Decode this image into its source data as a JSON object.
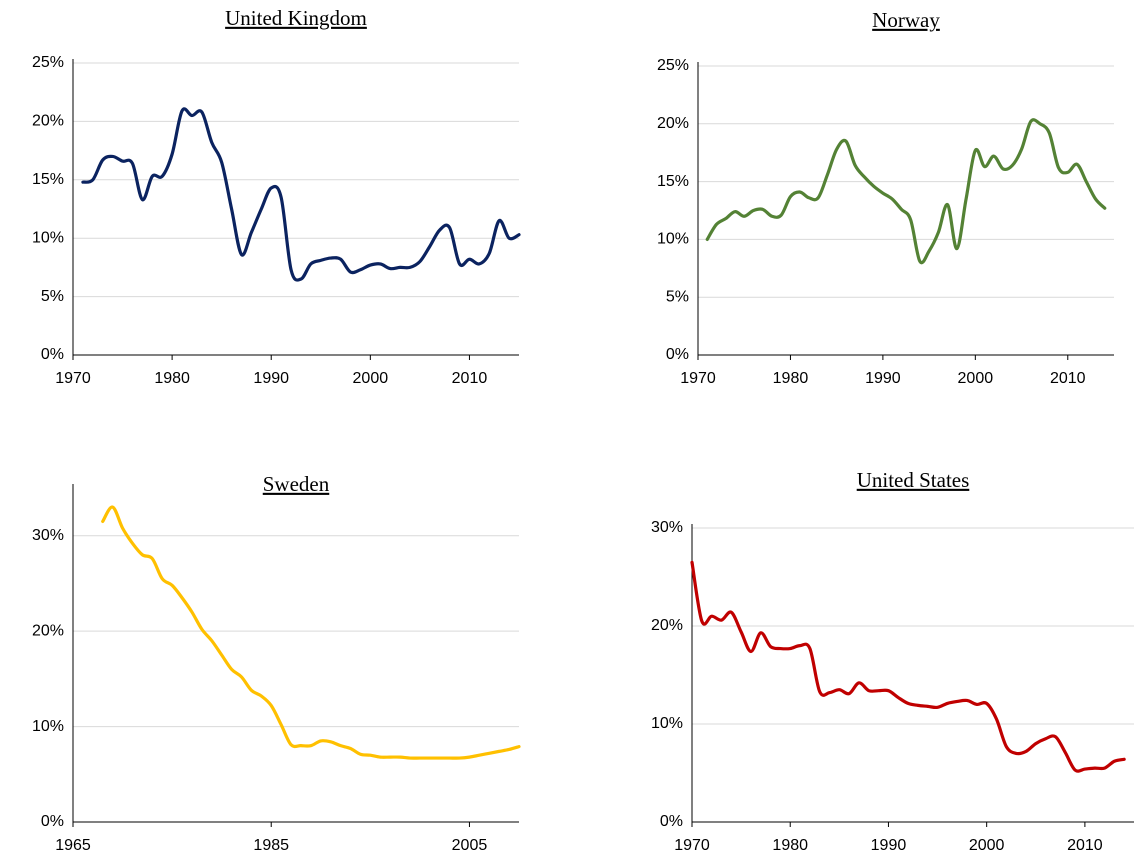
{
  "chart_data": [
    {
      "type": "line",
      "title": "United Kingdom",
      "color": "#0b2360",
      "grid": true,
      "x": [
        1971,
        1972,
        1973,
        1974,
        1975,
        1976,
        1977,
        1978,
        1979,
        1980,
        1981,
        1982,
        1983,
        1984,
        1985,
        1986,
        1987,
        1988,
        1989,
        1990,
        1991,
        1992,
        1993,
        1994,
        1995,
        1996,
        1997,
        1998,
        1999,
        2000,
        2001,
        2002,
        2003,
        2004,
        2005,
        2006,
        2007,
        2008,
        2009,
        2010,
        2011,
        2012,
        2013,
        2014,
        2015
      ],
      "values": [
        14.8,
        15,
        16.7,
        17,
        16.6,
        16.4,
        13.3,
        15.3,
        15.3,
        17.2,
        20.9,
        20.5,
        20.8,
        18.2,
        16.5,
        12.5,
        8.6,
        10.5,
        12.5,
        14.3,
        13.5,
        7.3,
        6.5,
        7.8,
        8.1,
        8.3,
        8.2,
        7.1,
        7.3,
        7.7,
        7.8,
        7.4,
        7.5,
        7.5,
        8,
        9.3,
        10.7,
        10.9,
        7.8,
        8.2,
        7.8,
        8.7,
        11.5,
        10,
        10.3
      ],
      "xlim": [
        1970,
        2015
      ],
      "xticks": [
        1970,
        1980,
        1990,
        2000,
        2010
      ],
      "ylim": [
        0,
        25
      ],
      "yticks": [
        {
          "value": 0,
          "label": "0%"
        },
        {
          "value": 5,
          "label": "5%"
        },
        {
          "value": 10,
          "label": "10%"
        },
        {
          "value": 15,
          "label": "15%"
        },
        {
          "value": 20,
          "label": "20%"
        },
        {
          "value": 25,
          "label": "25%"
        }
      ]
    },
    {
      "type": "line",
      "title": "Norway",
      "color": "#548235",
      "grid": true,
      "x": [
        1971,
        1972,
        1973,
        1974,
        1975,
        1976,
        1977,
        1978,
        1979,
        1980,
        1981,
        1982,
        1983,
        1984,
        1985,
        1986,
        1987,
        1988,
        1989,
        1990,
        1991,
        1992,
        1993,
        1994,
        1995,
        1996,
        1997,
        1998,
        1999,
        2000,
        2001,
        2002,
        2003,
        2004,
        2005,
        2006,
        2007,
        2008,
        2009,
        2010,
        2011,
        2012,
        2013,
        2014
      ],
      "values": [
        10,
        11.3,
        11.8,
        12.4,
        12,
        12.5,
        12.6,
        12,
        12.1,
        13.7,
        14.1,
        13.6,
        13.6,
        15.6,
        17.8,
        18.5,
        16.4,
        15.4,
        14.6,
        14,
        13.5,
        12.6,
        11.7,
        8.1,
        9,
        10.6,
        13,
        9.2,
        13.5,
        17.7,
        16.3,
        17.2,
        16.1,
        16.4,
        17.8,
        20.2,
        20,
        19.2,
        16.2,
        15.8,
        16.5,
        15,
        13.5,
        12.7
      ],
      "xlim": [
        1970,
        2015
      ],
      "xticks": [
        1970,
        1980,
        1990,
        2000,
        2010
      ],
      "ylim": [
        0,
        25
      ],
      "yticks": [
        {
          "value": 0,
          "label": "0%"
        },
        {
          "value": 5,
          "label": "5%"
        },
        {
          "value": 10,
          "label": "10%"
        },
        {
          "value": 15,
          "label": "15%"
        },
        {
          "value": 20,
          "label": "20%"
        },
        {
          "value": 25,
          "label": "25%"
        }
      ]
    },
    {
      "type": "line",
      "title": "Sweden",
      "color": "#ffc000",
      "grid": true,
      "x": [
        1968,
        1969,
        1970,
        1971,
        1972,
        1973,
        1974,
        1975,
        1976,
        1977,
        1978,
        1979,
        1980,
        1981,
        1982,
        1983,
        1984,
        1985,
        1986,
        1987,
        1988,
        1989,
        1990,
        1991,
        1992,
        1993,
        1994,
        1995,
        1996,
        1997,
        1998,
        1999,
        2000,
        2001,
        2002,
        2003,
        2004,
        2005,
        2006,
        2007,
        2008,
        2009,
        2010
      ],
      "values": [
        31.5,
        33,
        30.8,
        29.2,
        28,
        27.6,
        25.5,
        24.8,
        23.5,
        22,
        20.2,
        19,
        17.5,
        16,
        15.2,
        13.8,
        13.2,
        12.2,
        10.2,
        8.1,
        8,
        8,
        8.5,
        8.4,
        8,
        7.7,
        7.1,
        7,
        6.8,
        6.8,
        6.8,
        6.7,
        6.7,
        6.7,
        6.7,
        6.7,
        6.7,
        6.8,
        7,
        7.2,
        7.4,
        7.6,
        7.9
      ],
      "xlim": [
        1965,
        2010
      ],
      "xticks": [
        1965,
        1985,
        2005
      ],
      "ylim": [
        0,
        35
      ],
      "yticks": [
        {
          "value": 0,
          "label": "0%"
        },
        {
          "value": 10,
          "label": "10%"
        },
        {
          "value": 20,
          "label": "20%"
        },
        {
          "value": 30,
          "label": "30%"
        }
      ]
    },
    {
      "type": "line",
      "title": "United States",
      "color": "#c00000",
      "grid": true,
      "x": [
        1970,
        1971,
        1972,
        1973,
        1974,
        1975,
        1976,
        1977,
        1978,
        1979,
        1980,
        1981,
        1982,
        1983,
        1984,
        1985,
        1986,
        1987,
        1988,
        1989,
        1990,
        1991,
        1992,
        1993,
        1994,
        1995,
        1996,
        1997,
        1998,
        1999,
        2000,
        2001,
        2002,
        2003,
        2004,
        2005,
        2006,
        2007,
        2008,
        2009,
        2010,
        2011,
        2012,
        2013,
        2014
      ],
      "values": [
        26.5,
        20.5,
        21,
        20.6,
        21.4,
        19.4,
        17.4,
        19.3,
        17.9,
        17.7,
        17.7,
        18,
        17.7,
        13.3,
        13.2,
        13.5,
        13.1,
        14.2,
        13.4,
        13.4,
        13.4,
        12.7,
        12.1,
        11.9,
        11.8,
        11.7,
        12.1,
        12.3,
        12.4,
        12,
        12.1,
        10.5,
        7.7,
        7,
        7.2,
        8,
        8.5,
        8.7,
        7.1,
        5.3,
        5.4,
        5.5,
        5.5,
        6.2,
        6.4
      ],
      "xlim": [
        1970,
        2015
      ],
      "xticks": [
        1970,
        1980,
        1990,
        2000,
        2010
      ],
      "ylim": [
        0,
        30
      ],
      "yticks": [
        {
          "value": 0,
          "label": "0%"
        },
        {
          "value": 10,
          "label": "10%"
        },
        {
          "value": 20,
          "label": "20%"
        },
        {
          "value": 30,
          "label": "30%"
        }
      ]
    }
  ]
}
